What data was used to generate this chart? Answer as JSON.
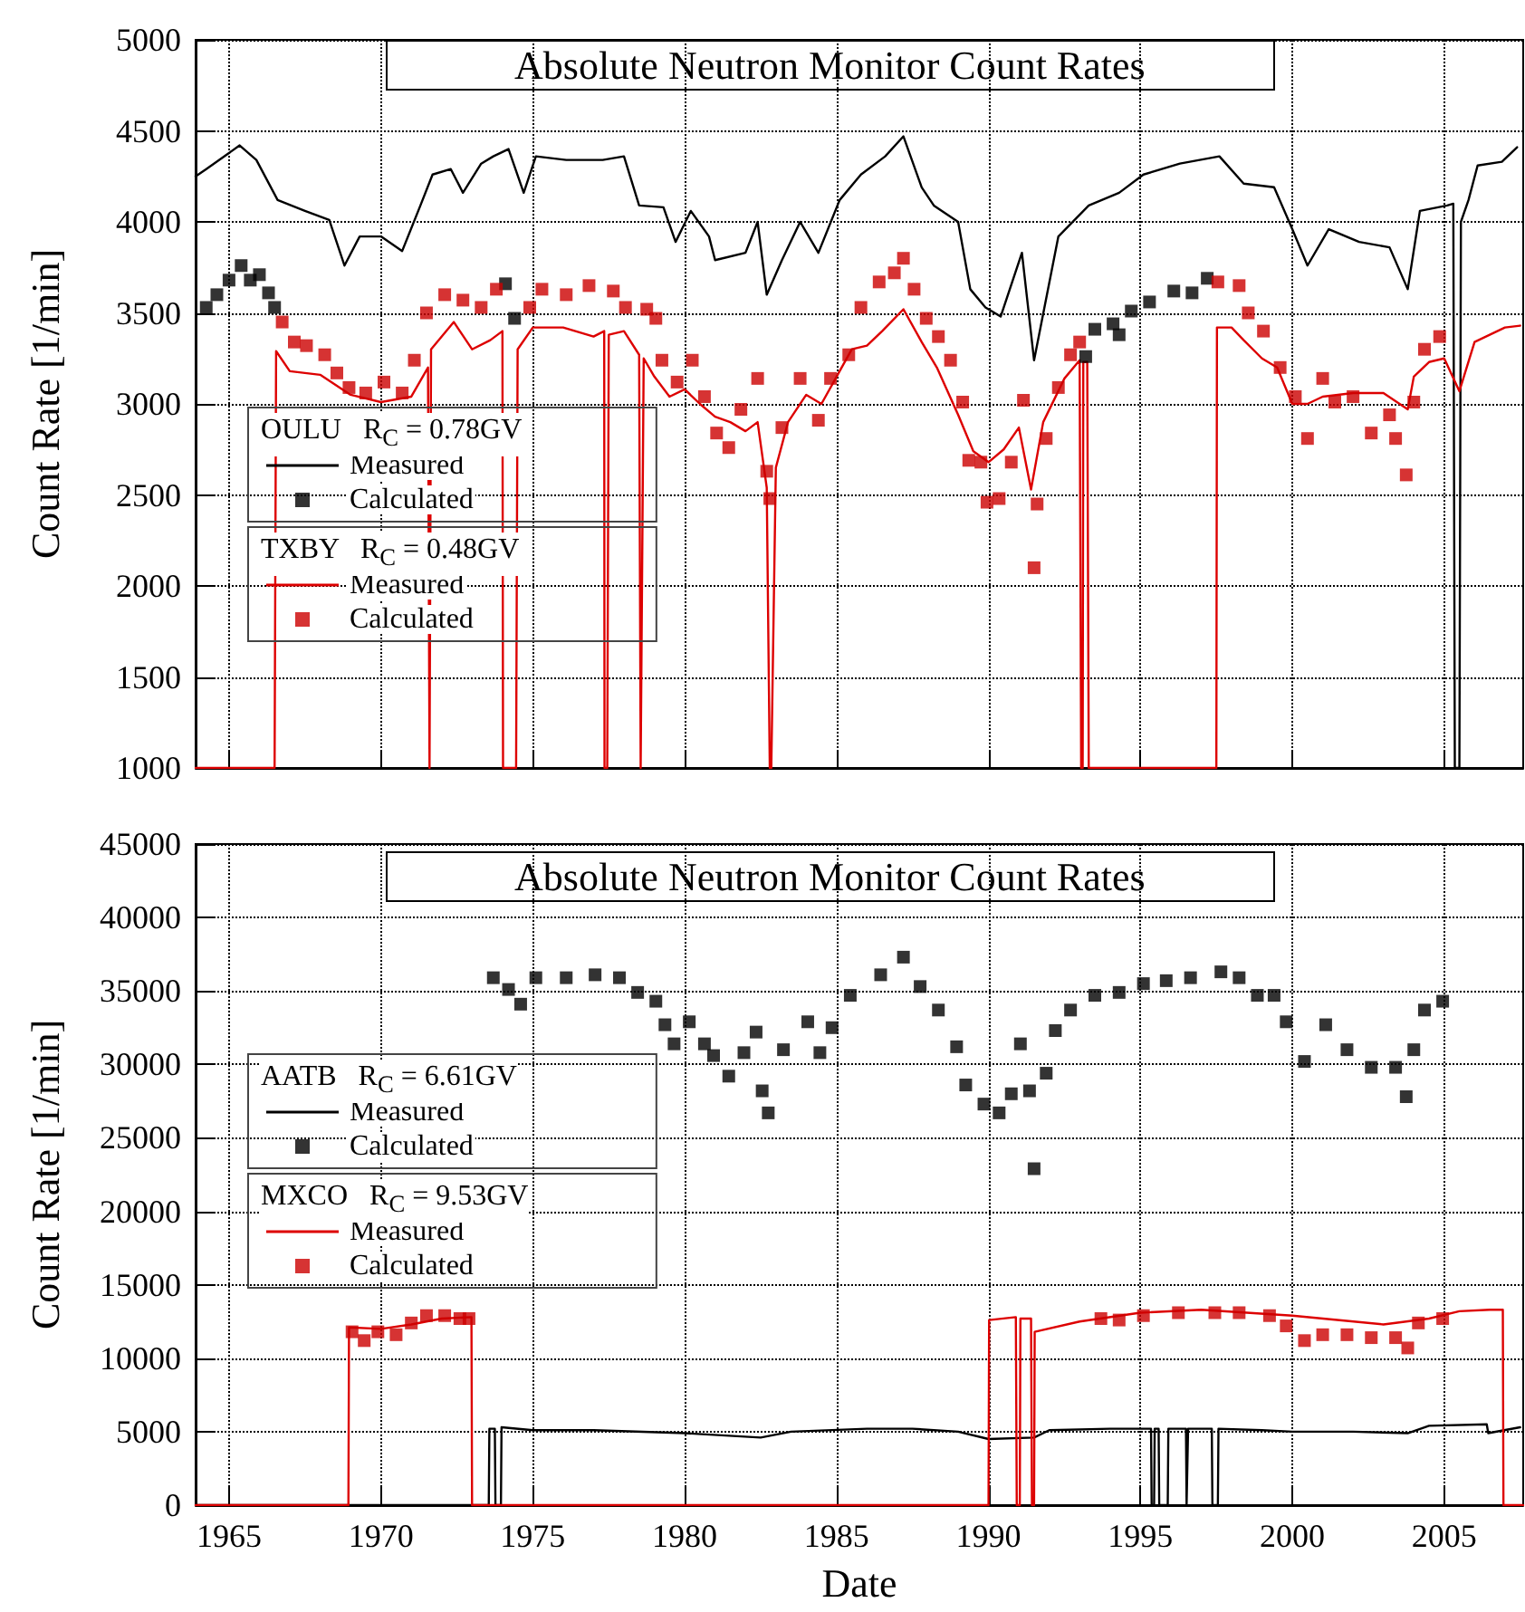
{
  "chart_data": [
    {
      "type": "line",
      "title": "Absolute Neutron Monitor Count Rates",
      "ylabel": "Count Rate [1/min]",
      "xlim": [
        1963.9,
        2007.6
      ],
      "ylim": [
        1000,
        5000
      ],
      "xticks": [
        1965,
        1970,
        1975,
        1980,
        1985,
        1990,
        1995,
        2000,
        2005
      ],
      "yticks": [
        1000,
        1500,
        2000,
        2500,
        3000,
        3500,
        4000,
        4500,
        5000
      ],
      "tick_labels": "y",
      "grid": true,
      "legend": "left",
      "annotations": [
        "OULU   R$_{C}$ = 0.78GV",
        "TXBY   R$_{C}$ = 0.48GV"
      ],
      "series": [
        {
          "name": "Measured",
          "marker": "none",
          "color": "#000000",
          "x": [
            1963.9,
            1964.25,
            1965.35,
            1965.9,
            1966.6,
            1967.5,
            1968.3,
            1968.8,
            1969.3,
            1970.0,
            1970.7,
            1971.3,
            1971.7,
            1972.3,
            1972.7,
            1973.3,
            1973.7,
            1974.2,
            1974.7,
            1975.1,
            1976.1,
            1977.3,
            1978.0,
            1978.5,
            1979.3,
            1979.7,
            1980.2,
            1980.8,
            1981.0,
            1982.0,
            1982.4,
            1982.7,
            1983.2,
            1983.8,
            1984.4,
            1985.1,
            1985.8,
            1986.6,
            1987.2,
            1987.8,
            1988.2,
            1989.0,
            1989.4,
            1989.9,
            1990.4,
            1991.1,
            1991.5,
            1992.3,
            1993.3,
            1994.3,
            1995.1,
            1996.3,
            1997.6,
            1998.4,
            1999.4,
            2000.0,
            2000.5,
            2001.2,
            2002.2,
            2003.2,
            2003.8,
            2004.2,
            2005.1,
            2005.3,
            2005.35,
            2005.5,
            2005.55,
            2005.8,
            2006.1,
            2006.9,
            2007.4
          ],
          "values": [
            4250,
            4290,
            4420,
            4340,
            4120,
            4060,
            4010,
            3760,
            3920,
            3920,
            3840,
            4090,
            4260,
            4290,
            4160,
            4320,
            4360,
            4400,
            4160,
            4360,
            4340,
            4340,
            4360,
            4090,
            4080,
            3890,
            4060,
            3920,
            3790,
            3830,
            4000,
            3600,
            3790,
            4000,
            3830,
            4120,
            4260,
            4360,
            4470,
            4190,
            4090,
            4000,
            3630,
            3530,
            3480,
            3830,
            3240,
            3920,
            4090,
            4160,
            4260,
            4320,
            4360,
            4210,
            4190,
            3960,
            3760,
            3960,
            3890,
            3860,
            3630,
            4060,
            4090,
            4100,
            1000,
            1000,
            4000,
            4120,
            4310,
            4330,
            4410
          ]
        },
        {
          "name": "Calculated",
          "type": "scatter",
          "marker": "square",
          "color": "#000000",
          "x": [
            1964.25,
            1964.6,
            1965.0,
            1965.4,
            1965.7,
            1966.0,
            1966.3,
            1966.5,
            1974.1,
            1974.4,
            1993.2,
            1993.5,
            1994.1,
            1994.3,
            1994.7,
            1995.3,
            1996.1,
            1996.7,
            1997.2
          ],
          "values": [
            3530,
            3600,
            3680,
            3760,
            3680,
            3710,
            3610,
            3530,
            3660,
            3470,
            3260,
            3410,
            3440,
            3380,
            3510,
            3560,
            3620,
            3610,
            3690
          ]
        },
        {
          "name": "Measured",
          "marker": "none",
          "color": "#dd0000",
          "x": [
            1963.9,
            1966.5,
            1966.55,
            1967.0,
            1968.0,
            1969.0,
            1970.0,
            1971.0,
            1971.55,
            1971.6,
            1971.65,
            1972.4,
            1973.0,
            1973.6,
            1974.0,
            1974.02,
            1974.45,
            1974.5,
            1975.0,
            1976.0,
            1977.0,
            1977.35,
            1977.36,
            1977.45,
            1977.5,
            1978.0,
            1978.5,
            1978.55,
            1978.65,
            1979.0,
            1979.5,
            1980.0,
            1980.5,
            1981.0,
            1981.5,
            1982.0,
            1982.4,
            1982.7,
            1982.8,
            1982.85,
            1983.0,
            1983.4,
            1984.0,
            1984.5,
            1985.0,
            1985.5,
            1986.0,
            1986.5,
            1987.2,
            1987.8,
            1988.3,
            1989.0,
            1989.5,
            1990.0,
            1990.5,
            1991.0,
            1991.4,
            1991.8,
            1992.5,
            1993.0,
            1993.05,
            1993.1,
            1993.12,
            1993.25,
            1993.3,
            1997.5,
            1997.52,
            1998.0,
            1998.4,
            1999.0,
            1999.5,
            2000.0,
            2000.5,
            2001.0,
            2002.0,
            2003.0,
            2003.8,
            2004.0,
            2004.5,
            2005.0,
            2005.5,
            2006.0,
            2006.5,
            2007.0,
            2007.5
          ],
          "values": [
            1000,
            1000,
            3290,
            3180,
            3160,
            3050,
            3010,
            3040,
            3200,
            1000,
            3300,
            3450,
            3300,
            3350,
            3400,
            1000,
            1000,
            3300,
            3420,
            3420,
            3370,
            3400,
            1000,
            1000,
            3380,
            3400,
            3270,
            1000,
            3250,
            3150,
            3040,
            3080,
            3000,
            2930,
            2900,
            2850,
            2900,
            2540,
            1000,
            1000,
            2650,
            2900,
            3050,
            3000,
            3150,
            3300,
            3320,
            3400,
            3520,
            3340,
            3200,
            2940,
            2740,
            2680,
            2750,
            2870,
            2530,
            2900,
            3140,
            3240,
            1000,
            1000,
            3230,
            3230,
            1000,
            1000,
            3420,
            3420,
            3350,
            3250,
            3200,
            3000,
            3000,
            3040,
            3060,
            3060,
            2970,
            3150,
            3230,
            3250,
            3070,
            3340,
            3380,
            3420,
            3430
          ]
        },
        {
          "name": "Calculated",
          "type": "scatter",
          "marker": "square",
          "color": "#cc0000",
          "x": [
            1966.75,
            1967.15,
            1967.55,
            1968.15,
            1968.55,
            1968.95,
            1969.5,
            1970.1,
            1970.7,
            1971.1,
            1971.5,
            1972.1,
            1972.7,
            1973.3,
            1973.8,
            1974.9,
            1975.3,
            1976.1,
            1976.85,
            1977.65,
            1978.05,
            1978.75,
            1979.05,
            1979.25,
            1979.75,
            1980.25,
            1980.65,
            1981.05,
            1981.45,
            1981.85,
            1982.4,
            1982.7,
            1982.8,
            1983.2,
            1983.8,
            1984.4,
            1984.8,
            1985.4,
            1985.8,
            1986.4,
            1986.9,
            1987.2,
            1987.55,
            1987.95,
            1988.35,
            1988.75,
            1989.15,
            1989.35,
            1989.75,
            1989.95,
            1990.35,
            1990.75,
            1991.15,
            1991.5,
            1991.6,
            1991.9,
            1992.3,
            1992.7,
            1993.0,
            1997.55,
            1998.25,
            1998.55,
            1999.05,
            1999.6,
            2000.1,
            2000.5,
            2001.0,
            2001.4,
            2002.0,
            2002.6,
            2003.2,
            2003.4,
            2003.75,
            2004.0,
            2004.35,
            2004.85
          ],
          "values": [
            3450,
            3340,
            3320,
            3270,
            3170,
            3090,
            3060,
            3120,
            3060,
            3240,
            3500,
            3600,
            3570,
            3530,
            3630,
            3530,
            3630,
            3600,
            3650,
            3620,
            3530,
            3520,
            3470,
            3240,
            3120,
            3240,
            3040,
            2840,
            2760,
            2970,
            3140,
            2630,
            2480,
            2870,
            3140,
            2910,
            3140,
            3270,
            3530,
            3670,
            3720,
            3800,
            3630,
            3470,
            3370,
            3240,
            3010,
            2690,
            2680,
            2460,
            2480,
            2680,
            3020,
            2100,
            2450,
            2810,
            3090,
            3270,
            3340,
            3670,
            3650,
            3500,
            3400,
            3200,
            3040,
            2810,
            3140,
            3010,
            3040,
            2840,
            2940,
            2810,
            2610,
            3010,
            3300,
            3370
          ]
        }
      ]
    },
    {
      "type": "line",
      "title": "Absolute Neutron Monitor Count Rates",
      "xlabel": "Date",
      "ylabel": "Count Rate [1/min]",
      "xlim": [
        1963.9,
        2007.6
      ],
      "ylim": [
        0,
        45000
      ],
      "xticks": [
        1965,
        1970,
        1975,
        1980,
        1985,
        1990,
        1995,
        2000,
        2005
      ],
      "yticks": [
        0,
        5000,
        10000,
        15000,
        20000,
        25000,
        30000,
        35000,
        40000,
        45000
      ],
      "grid": true,
      "legend": "left",
      "annotations": [
        "AATB   R$_{C}$ = 6.61GV",
        "MXCO   R$_{C}$ = 9.53GV"
      ],
      "series": [
        {
          "name": "Measured",
          "marker": "none",
          "color": "#000000",
          "x": [
            1963.9,
            1973.55,
            1973.57,
            1973.75,
            1973.77,
            1973.95,
            1973.97,
            1975,
            1977,
            1980,
            1982.5,
            1983.5,
            1986,
            1987.5,
            1989,
            1990,
            1991.5,
            1992,
            1994,
            1995.35,
            1995.37,
            1995.45,
            1995.47,
            1995.6,
            1995.62,
            1995.9,
            1995.92,
            1996.5,
            1996.52,
            1996.55,
            1996.57,
            1997.35,
            1997.37,
            1997.55,
            1997.57,
            1999,
            2000,
            2002,
            2003.8,
            2004.5,
            2006.4,
            2006.45,
            2007.5
          ],
          "values": [
            0,
            0,
            5200,
            5200,
            0,
            0,
            5300,
            5100,
            5100,
            4900,
            4600,
            5000,
            5200,
            5200,
            5000,
            4500,
            4600,
            5100,
            5200,
            5200,
            0,
            0,
            5200,
            5200,
            0,
            0,
            5200,
            5200,
            0,
            0,
            5200,
            5200,
            0,
            0,
            5200,
            5100,
            5000,
            5000,
            4900,
            5400,
            5500,
            4900,
            5300
          ]
        },
        {
          "name": "Calculated",
          "type": "scatter",
          "marker": "square",
          "color": "#000000",
          "x": [
            1973.7,
            1974.2,
            1974.6,
            1975.1,
            1976.1,
            1977.05,
            1977.85,
            1978.45,
            1979.05,
            1979.35,
            1979.65,
            1980.15,
            1980.65,
            1980.95,
            1981.45,
            1981.95,
            1982.35,
            1982.55,
            1982.75,
            1983.25,
            1984.05,
            1984.45,
            1984.85,
            1985.45,
            1986.45,
            1987.2,
            1987.75,
            1988.35,
            1988.95,
            1989.25,
            1989.85,
            1990.35,
            1990.75,
            1991.05,
            1991.35,
            1991.5,
            1991.9,
            1992.2,
            1992.7,
            1993.5,
            1994.3,
            1995.1,
            1995.85,
            1996.65,
            1997.65,
            1998.25,
            1998.85,
            1999.4,
            1999.8,
            2000.4,
            2001.1,
            2001.8,
            2002.6,
            2003.4,
            2003.75,
            2004.0,
            2004.35,
            2004.95
          ],
          "values": [
            35900,
            35100,
            34100,
            35900,
            35900,
            36100,
            35900,
            34900,
            34300,
            32700,
            31400,
            32900,
            31400,
            30600,
            29200,
            30800,
            32200,
            28200,
            26700,
            31000,
            32900,
            30800,
            32500,
            34700,
            36100,
            37300,
            35300,
            33700,
            31200,
            28600,
            27300,
            26700,
            28000,
            31400,
            28200,
            22900,
            29400,
            32300,
            33700,
            34700,
            34900,
            35500,
            35700,
            35900,
            36300,
            35900,
            34700,
            34700,
            32900,
            30200,
            32700,
            31000,
            29800,
            29800,
            27800,
            31000,
            33700,
            34300
          ]
        },
        {
          "name": "Measured",
          "marker": "none",
          "color": "#dd0000",
          "x": [
            1963.9,
            1968.93,
            1968.95,
            1970,
            1971,
            1972,
            1972.98,
            1973.0,
            1990.0,
            1990.02,
            1990.9,
            1990.93,
            1991.03,
            1991.05,
            1991.4,
            1991.43,
            1991.5,
            1991.52,
            1993,
            1995,
            1997,
            2000,
            2003,
            2004.5,
            2005.5,
            2006.5,
            2006.93,
            2006.95,
            2007.6
          ],
          "values": [
            0,
            0,
            12100,
            12000,
            12300,
            12700,
            12800,
            0,
            0,
            12600,
            12800,
            0,
            0,
            12700,
            12700,
            0,
            0,
            11800,
            12500,
            13100,
            13300,
            12900,
            12300,
            12700,
            13200,
            13300,
            13300,
            0,
            0
          ]
        },
        {
          "name": "Calculated",
          "type": "scatter",
          "marker": "square",
          "color": "#cc0000",
          "x": [
            1969.05,
            1969.45,
            1969.9,
            1970.5,
            1971.0,
            1971.5,
            1972.1,
            1972.6,
            1972.9,
            1993.7,
            1994.3,
            1995.1,
            1996.25,
            1997.45,
            1998.25,
            1999.25,
            1999.8,
            2000.4,
            2001.0,
            2001.8,
            2002.6,
            2003.4,
            2003.8,
            2004.15,
            2004.95
          ],
          "values": [
            11800,
            11200,
            11800,
            11600,
            12400,
            12900,
            12900,
            12700,
            12700,
            12700,
            12600,
            12900,
            13100,
            13100,
            13100,
            12900,
            12200,
            11200,
            11600,
            11600,
            11400,
            11400,
            10700,
            12400,
            12700
          ]
        }
      ]
    }
  ]
}
